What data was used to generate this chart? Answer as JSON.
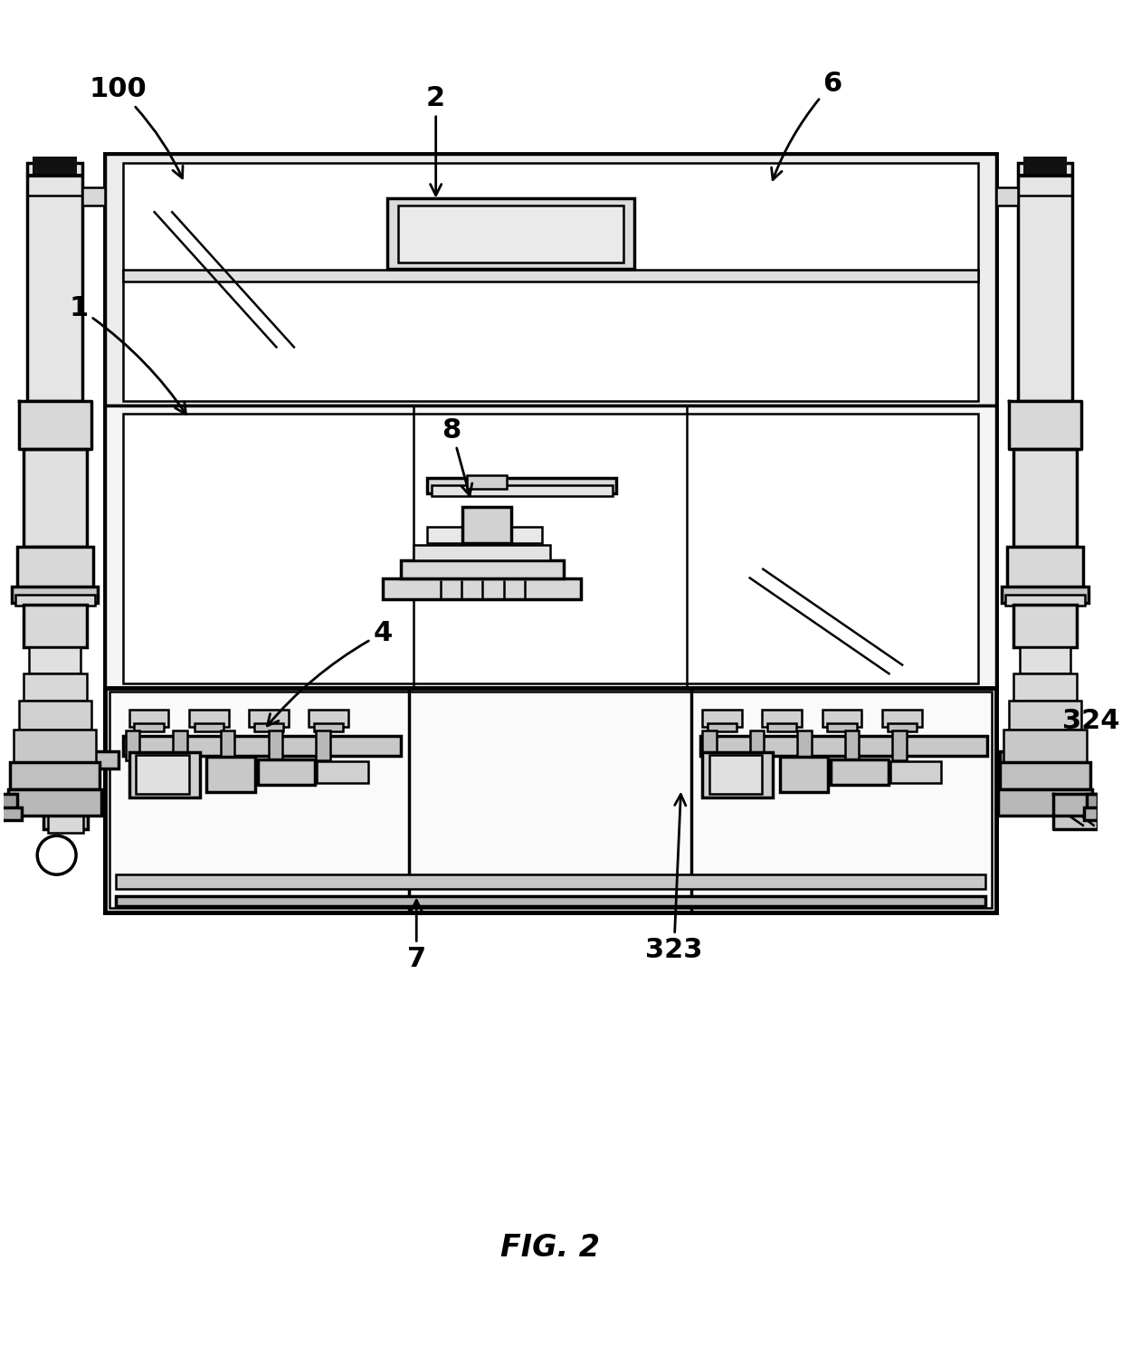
{
  "background_color": "#ffffff",
  "fig_label": "FIG. 2",
  "fig_label_fontsize": 24,
  "lw": 1.8,
  "lw2": 2.5,
  "lw3": 3.5,
  "gray1": "#f2f2f2",
  "gray2": "#e8e8e8",
  "gray3": "#d8d8d8",
  "gray4": "#c8c8c8",
  "gray5": "#b8b8b8",
  "dark": "#222222"
}
